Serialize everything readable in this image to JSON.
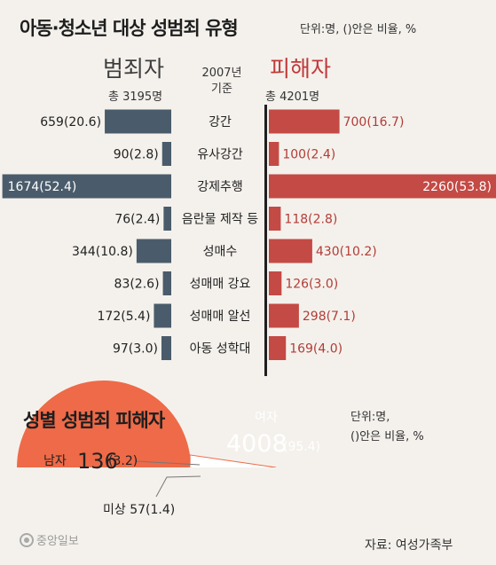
{
  "title": "아동·청소년 대상 성범죄 유형",
  "unit_note": "단위:명, ()안은 비율, %",
  "left_header": "범죄자",
  "right_header": "피해자",
  "center_header_line1": "2007년",
  "center_header_line2": "기준",
  "left_total": "총 3195명",
  "right_total": "총 4201명",
  "colors": {
    "offender": "#4a5c6b",
    "victim": "#c44a45",
    "female": "#ee6a48"
  },
  "chart_data": [
    {
      "type": "bar",
      "orientation": "horizontal-butterfly",
      "title": "아동·청소년 대상 성범죄 유형",
      "categories": [
        "강간",
        "유사강간",
        "강제추행",
        "음란물 제작 등",
        "성매수",
        "성매매 강요",
        "성매매 알선",
        "아동 성학대"
      ],
      "series": [
        {
          "name": "범죄자",
          "values": [
            659,
            90,
            1674,
            76,
            344,
            83,
            172,
            97
          ],
          "percents": [
            20.6,
            2.8,
            52.4,
            2.4,
            10.8,
            2.6,
            5.4,
            3.0
          ],
          "labels": [
            "659(20.6)",
            "90(2.8)",
            "1674(52.4)",
            "76(2.4)",
            "344(10.8)",
            "83(2.6)",
            "172(5.4)",
            "97(3.0)"
          ]
        },
        {
          "name": "피해자",
          "values": [
            700,
            100,
            2260,
            118,
            430,
            126,
            298,
            169
          ],
          "percents": [
            16.7,
            2.4,
            53.8,
            2.8,
            10.2,
            3.0,
            7.1,
            4.0
          ],
          "labels": [
            "700(16.7)",
            "100(2.4)",
            "2260(53.8)",
            "118(2.8)",
            "430(10.2)",
            "126(3.0)",
            "298(7.1)",
            "169(4.0)"
          ]
        }
      ]
    },
    {
      "type": "pie",
      "title": "성별 성범죄 피해자",
      "unit_note_line1": "단위:명,",
      "unit_note_line2": "()안은 비율, %",
      "slices": [
        {
          "name": "여자",
          "value": 4008,
          "percent": 95.4,
          "value_label": "4008",
          "percent_label": "(95.4)"
        },
        {
          "name": "남자",
          "value": 136,
          "percent": 3.2,
          "value_label": "136",
          "percent_label": "(3.2)"
        },
        {
          "name": "미상",
          "value": 57,
          "percent": 1.4,
          "value_label": "57",
          "percent_label": "(1.4)"
        }
      ]
    }
  ],
  "source": "자료: 여성가족부",
  "logo_text": "중앙일보"
}
